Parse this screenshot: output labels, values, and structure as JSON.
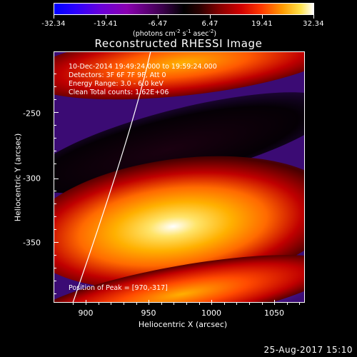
{
  "colorbar": {
    "tick_labels": [
      "-32.34",
      "-19.41",
      "-6.47",
      "6.47",
      "19.41",
      "32.34"
    ],
    "units_prefix": "(photons cm",
    "units_exp1": "-2",
    "units_mid": " s",
    "units_exp2": "-1",
    "units_mid2": " asec",
    "units_exp3": "-2",
    "units_suffix": ")"
  },
  "title": "Reconstructed RHESSI Image",
  "info": {
    "line1": "10-Dec-2014 19:49:24.000 to 19:59:24.000",
    "line2": "Detectors: 3F 6F 7F 9F, Att 0",
    "line3": "Energy Range: 3.0 - 6.0 keV",
    "line4": "Clean     Total counts: 1.62E+06"
  },
  "peak": "Position of Peak = [970,-317]",
  "axes": {
    "x_tick_labels": [
      "900",
      "950",
      "1000",
      "1050"
    ],
    "y_tick_labels": [
      "-250",
      "-300",
      "-350"
    ],
    "xlabel": "Heliocentric X (arcsec)",
    "ylabel": "Heliocentric Y (arcsec)"
  },
  "timestamp": "25-Aug-2017 15:10",
  "colors": {
    "background": "#000000",
    "hot_peak": "#ffffff",
    "hot": "#ffb000",
    "cold_background": "#3b0b74"
  }
}
